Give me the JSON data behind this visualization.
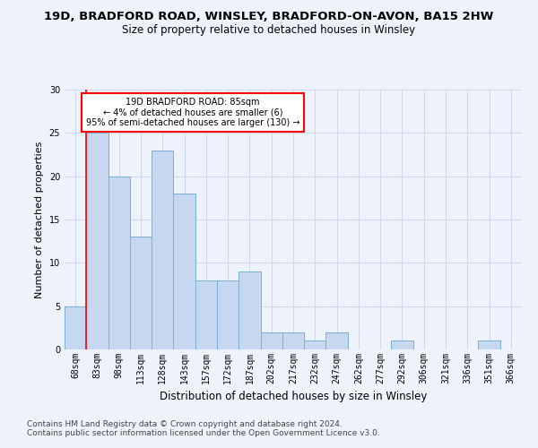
{
  "title1": "19D, BRADFORD ROAD, WINSLEY, BRADFORD-ON-AVON, BA15 2HW",
  "title2": "Size of property relative to detached houses in Winsley",
  "xlabel": "Distribution of detached houses by size in Winsley",
  "ylabel": "Number of detached properties",
  "categories": [
    "68sqm",
    "83sqm",
    "98sqm",
    "113sqm",
    "128sqm",
    "143sqm",
    "157sqm",
    "172sqm",
    "187sqm",
    "202sqm",
    "217sqm",
    "232sqm",
    "247sqm",
    "262sqm",
    "277sqm",
    "292sqm",
    "306sqm",
    "321sqm",
    "336sqm",
    "351sqm",
    "366sqm"
  ],
  "values": [
    5,
    25,
    20,
    13,
    23,
    18,
    8,
    8,
    9,
    2,
    2,
    1,
    2,
    0,
    0,
    1,
    0,
    0,
    0,
    1,
    0
  ],
  "bar_color": "#c5d8f0",
  "bar_edge_color": "#7aafd4",
  "red_line_index": 1,
  "annotation_text": "19D BRADFORD ROAD: 85sqm\n← 4% of detached houses are smaller (6)\n95% of semi-detached houses are larger (130) →",
  "annotation_box_color": "white",
  "annotation_box_edge": "red",
  "ylim": [
    0,
    30
  ],
  "yticks": [
    0,
    5,
    10,
    15,
    20,
    25,
    30
  ],
  "bg_color": "#eef2fb",
  "footer1": "Contains HM Land Registry data © Crown copyright and database right 2024.",
  "footer2": "Contains public sector information licensed under the Open Government Licence v3.0.",
  "title1_fontsize": 9.5,
  "title2_fontsize": 8.5,
  "xlabel_fontsize": 8.5,
  "ylabel_fontsize": 8,
  "tick_fontsize": 7,
  "footer_fontsize": 6.5,
  "grid_color": "#d0d8ee"
}
